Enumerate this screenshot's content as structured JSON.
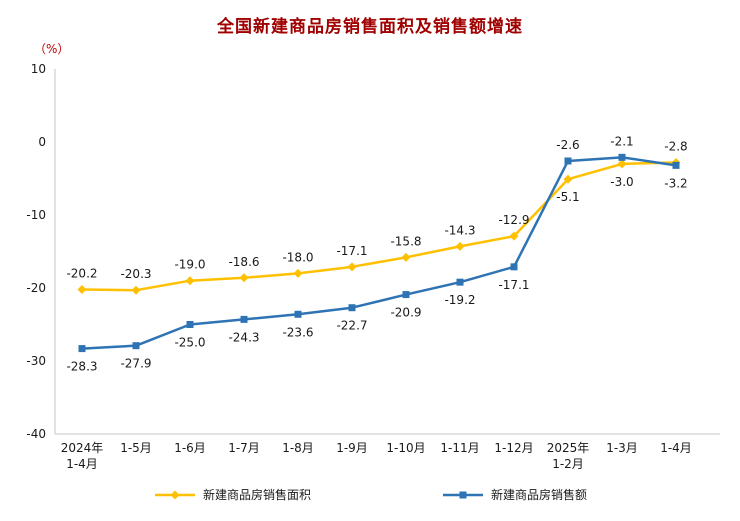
{
  "colors": {
    "title": "#a00000",
    "unit_label": "#c00000",
    "axis": "#c6c6c6",
    "tick_text": "#1a1a1a",
    "data_label": "#1a1a1a",
    "area_series": "#FFC000",
    "amount_series": "#2E74B5",
    "background": "#ffffff"
  },
  "chart_data": {
    "type": "line",
    "title": "全国新建商品房销售面积及销售额增速",
    "ylabel": "（%）",
    "xlabel": "",
    "ylim": [
      -40,
      10
    ],
    "yticks": [
      10,
      0,
      -10,
      -20,
      -30,
      -40
    ],
    "grid": false,
    "legend_position": "bottom",
    "categories": [
      "2024年\n1-4月",
      "1-5月",
      "1-6月",
      "1-7月",
      "1-8月",
      "1-9月",
      "1-10月",
      "1-11月",
      "1-12月",
      "2025年\n1-2月",
      "1-3月",
      "1-4月"
    ],
    "series": [
      {
        "name": "新建商品房销售面积",
        "color": "#FFC000",
        "marker": "diamond",
        "values": [
          -20.2,
          -20.3,
          -19.0,
          -18.6,
          -18.0,
          -17.1,
          -15.8,
          -14.3,
          -12.9,
          -5.1,
          -3.0,
          -2.8
        ]
      },
      {
        "name": "新建商品房销售额",
        "color": "#2E74B5",
        "marker": "square",
        "values": [
          -28.3,
          -27.9,
          -25.0,
          -24.3,
          -23.6,
          -22.7,
          -20.9,
          -19.2,
          -17.1,
          -2.6,
          -2.1,
          -3.2
        ]
      }
    ]
  }
}
